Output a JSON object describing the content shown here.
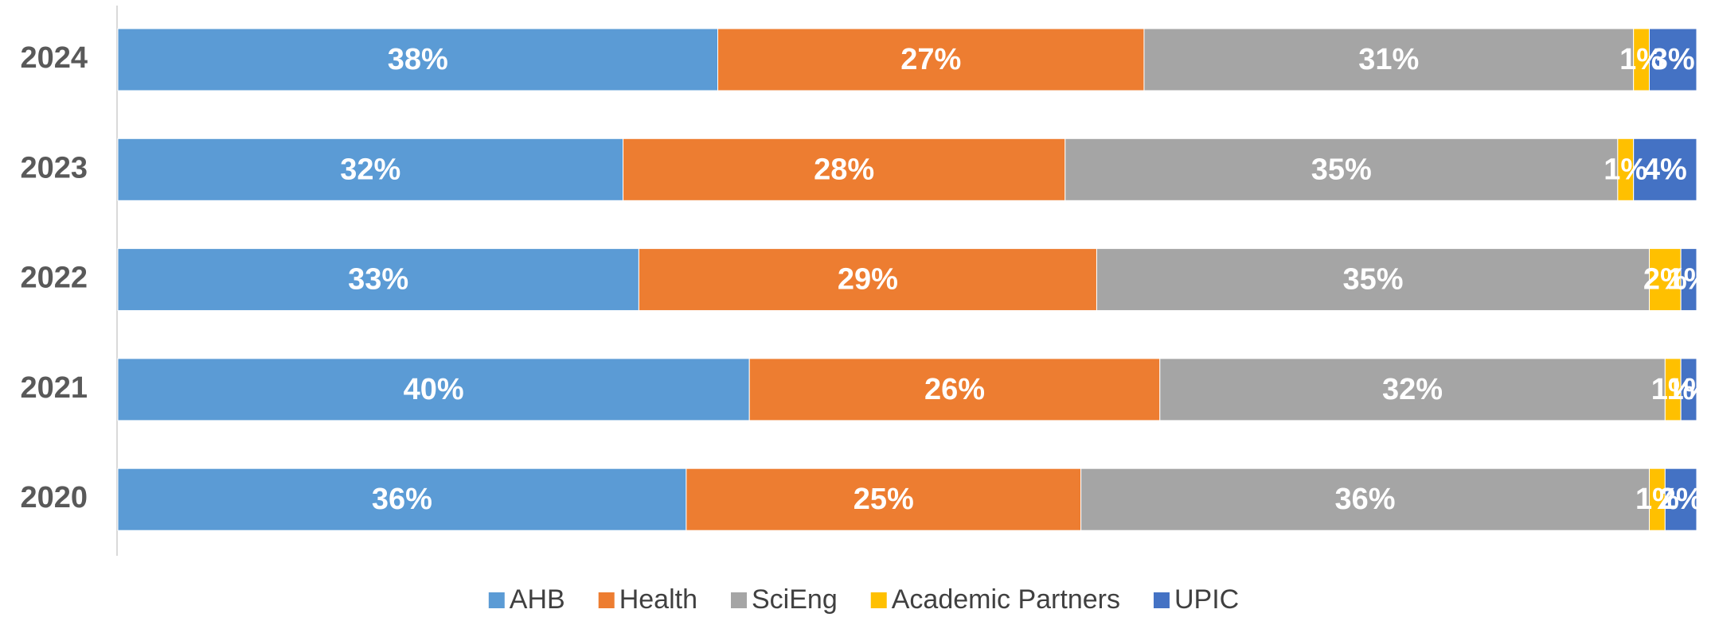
{
  "chart_data": {
    "type": "stacked_horizontal_bar",
    "categories": [
      "2024",
      "2023",
      "2022",
      "2021",
      "2020"
    ],
    "xlim": [
      0,
      100
    ],
    "series": [
      {
        "name": "AHB",
        "color": "#5b9bd5",
        "values": [
          38,
          32,
          33,
          40,
          36
        ],
        "value_labels": [
          "38%",
          "32%",
          "33%",
          "40%",
          "36%"
        ]
      },
      {
        "name": "Health",
        "color": "#ed7d31",
        "values": [
          27,
          28,
          29,
          26,
          25
        ],
        "value_labels": [
          "27%",
          "28%",
          "29%",
          "26%",
          "25%"
        ]
      },
      {
        "name": "SciEng",
        "color": "#a5a5a5",
        "values": [
          31,
          35,
          35,
          32,
          36
        ],
        "value_labels": [
          "31%",
          "35%",
          "35%",
          "32%",
          "36%"
        ]
      },
      {
        "name": "Academic Partners",
        "color": "#ffc000",
        "values": [
          1,
          1,
          2,
          1,
          1
        ],
        "value_labels": [
          "1%",
          "1%",
          "2%",
          "1%",
          "1%"
        ]
      },
      {
        "name": "UPIC",
        "color": "#4472c4",
        "values": [
          3,
          4,
          1,
          1,
          2
        ],
        "value_labels": [
          "3%",
          "4%",
          "1%",
          "1%",
          "2%"
        ]
      }
    ],
    "legend": "bottom"
  }
}
